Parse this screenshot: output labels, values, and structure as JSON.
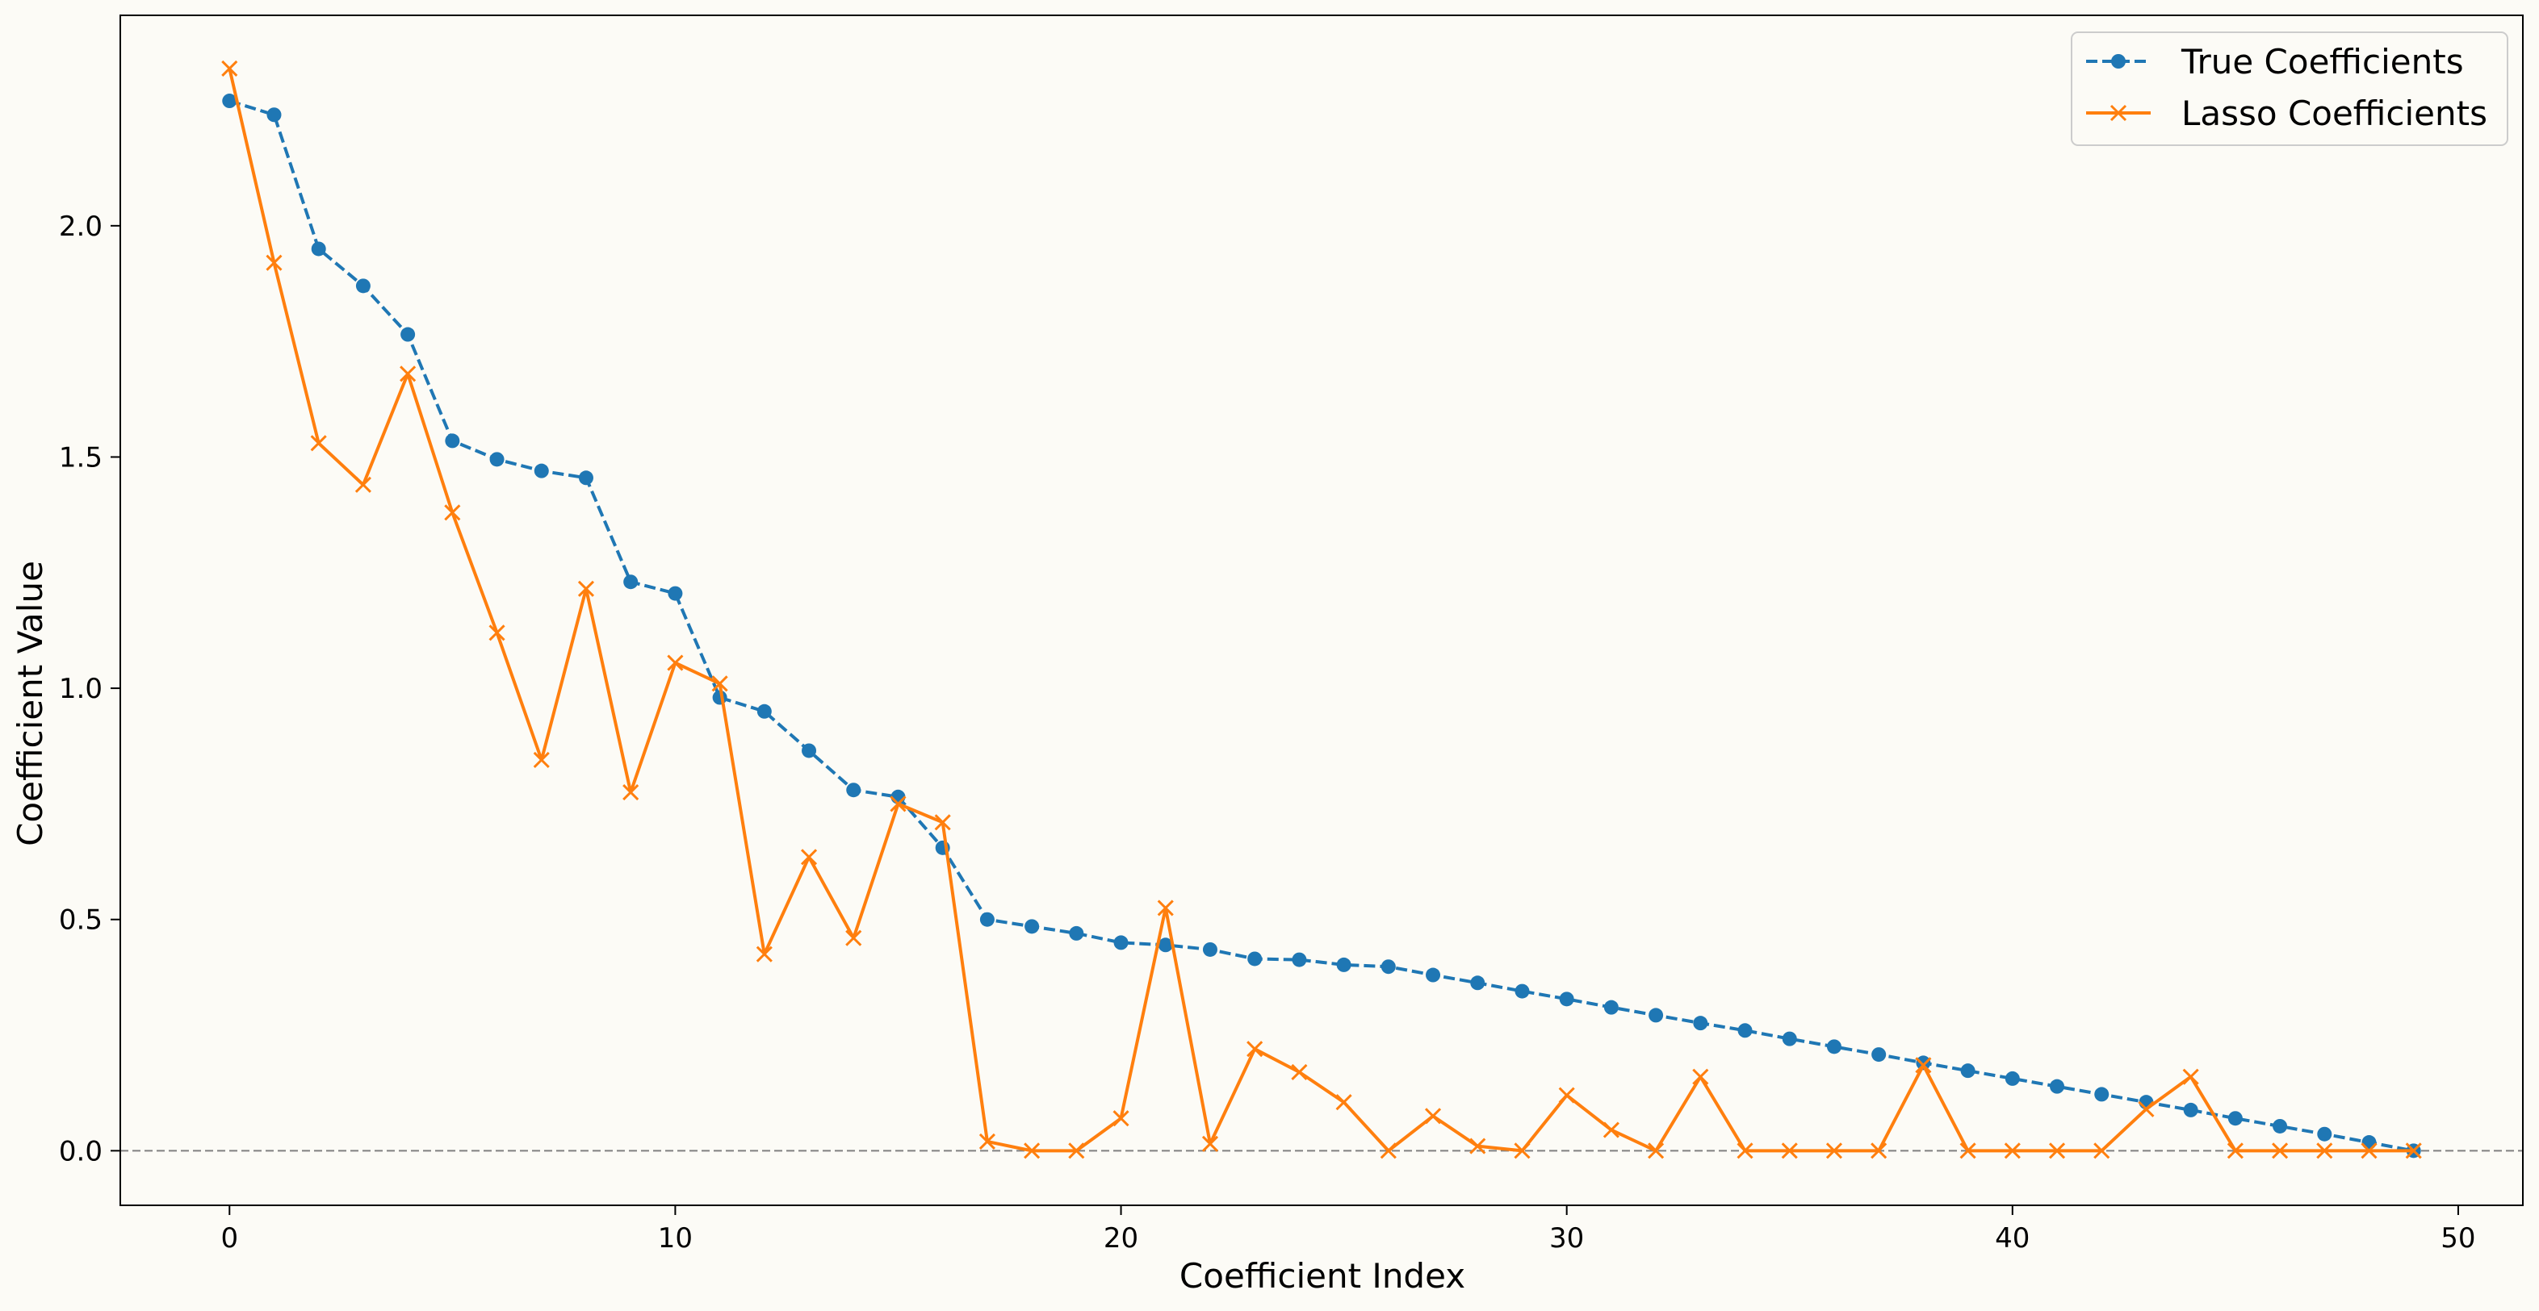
{
  "chart_data": {
    "type": "line",
    "xlabel": "Coefficient Index",
    "ylabel": "Coefficient Value",
    "xlim": [
      -2.45,
      51.45
    ],
    "ylim": [
      -0.118,
      2.455
    ],
    "xticks": [
      0,
      10,
      20,
      30,
      40,
      50
    ],
    "yticks": [
      0.0,
      0.5,
      1.0,
      1.5,
      2.0
    ],
    "xtick_labels": [
      "0",
      "10",
      "20",
      "30",
      "40",
      "50"
    ],
    "ytick_labels": [
      "0.0",
      "0.5",
      "1.0",
      "1.5",
      "2.0"
    ],
    "grid": false,
    "legend_position": "top-right",
    "reference_line": {
      "y": 0,
      "style": "dashed",
      "color": "#808080"
    },
    "x": [
      0,
      1,
      2,
      3,
      4,
      5,
      6,
      7,
      8,
      9,
      10,
      11,
      12,
      13,
      14,
      15,
      16,
      17,
      18,
      19,
      20,
      21,
      22,
      23,
      24,
      25,
      26,
      27,
      28,
      29,
      30,
      31,
      32,
      33,
      34,
      35,
      36,
      37,
      38,
      39,
      40,
      41,
      42,
      43,
      44,
      45,
      46,
      47,
      48,
      49
    ],
    "series": [
      {
        "name": "True Coefficients",
        "color": "#1f77b4",
        "line_style": "dashed",
        "marker": "circle",
        "values": [
          2.27,
          2.24,
          1.95,
          1.87,
          1.765,
          1.535,
          1.495,
          1.47,
          1.455,
          1.23,
          1.205,
          0.98,
          0.95,
          0.865,
          0.78,
          0.765,
          0.655,
          0.5,
          0.485,
          0.47,
          0.45,
          0.445,
          0.435,
          0.415,
          0.413,
          0.402,
          0.398,
          0.38,
          0.363,
          0.345,
          0.328,
          0.31,
          0.293,
          0.276,
          0.26,
          0.242,
          0.225,
          0.208,
          0.19,
          0.173,
          0.156,
          0.139,
          0.122,
          0.105,
          0.088,
          0.07,
          0.053,
          0.036,
          0.018,
          0.0
        ]
      },
      {
        "name": "Lasso Coefficients",
        "color": "#ff7f0e",
        "line_style": "solid",
        "marker": "x",
        "values": [
          2.34,
          1.92,
          1.53,
          1.44,
          1.68,
          1.38,
          1.12,
          0.845,
          1.215,
          0.775,
          1.055,
          1.01,
          0.425,
          0.635,
          0.46,
          0.75,
          0.71,
          0.02,
          0.0,
          0.0,
          0.07,
          0.525,
          0.015,
          0.22,
          0.17,
          0.105,
          0.0,
          0.075,
          0.01,
          0.0,
          0.12,
          0.045,
          0.0,
          0.16,
          0.0,
          0.0,
          0.0,
          0.0,
          0.185,
          0.0,
          0.0,
          0.0,
          0.0,
          0.09,
          0.16,
          0.0,
          0.0,
          0.0,
          0.0,
          0.0
        ]
      }
    ]
  }
}
